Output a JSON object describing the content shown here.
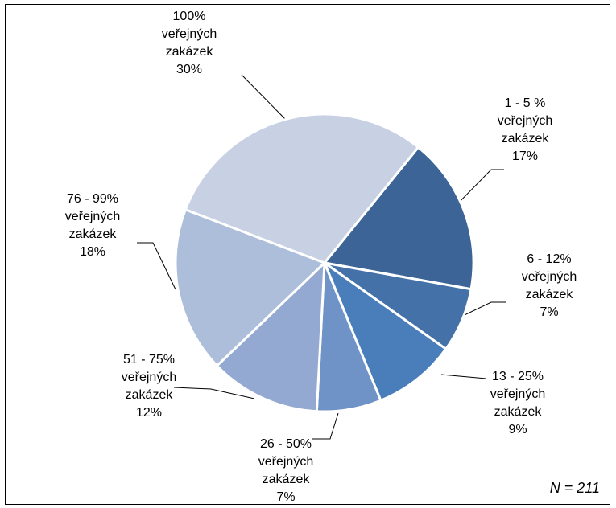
{
  "chart_data": {
    "type": "pie",
    "categories": [
      "1 - 5 % veřejných zakázek",
      "6 - 12% veřejných zakázek",
      "13 - 25% veřejných zakázek",
      "26 - 50% veřejných zakázek",
      "51 - 75% veřejných zakázek",
      "76 - 99% veřejných zakázek",
      "100% veřejných zakázek"
    ],
    "values": [
      17,
      7,
      9,
      7,
      12,
      18,
      30
    ],
    "value_labels": [
      "17%",
      "7%",
      "9%",
      "7%",
      "12%",
      "18%",
      "30%"
    ],
    "colors": [
      "#3c6496",
      "#4471a8",
      "#4a7ebb",
      "#6f93c7",
      "#94a9d1",
      "#adbedb",
      "#c8d0e4"
    ],
    "annotation": "N = 211"
  }
}
